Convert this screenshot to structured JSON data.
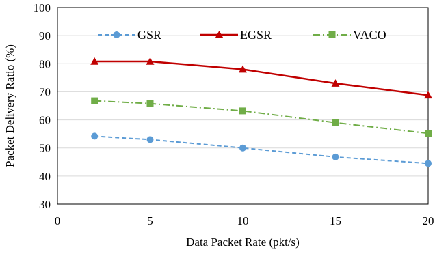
{
  "chart_data": {
    "type": "line",
    "xlabel": "Data Packet Rate (pkt/s)",
    "ylabel": "Packet Delivery Ratio (%)",
    "xlim": [
      0,
      20
    ],
    "ylim": [
      30,
      100
    ],
    "xticks": [
      0,
      5,
      10,
      15,
      20
    ],
    "yticks": [
      30,
      40,
      50,
      60,
      70,
      80,
      90,
      100
    ],
    "x": [
      2,
      5,
      10,
      15,
      20
    ],
    "grid": "horizontal major gridlines",
    "legend": "top, inside plot area, horizontal",
    "series": [
      {
        "name": "GSR",
        "values": [
          54.2,
          53.0,
          50.0,
          46.8,
          44.5
        ],
        "color": "#5b9bd5",
        "marker": "circle",
        "line": "dashed"
      },
      {
        "name": "EGSR",
        "values": [
          80.8,
          80.8,
          78.0,
          73.0,
          68.8
        ],
        "color": "#c00000",
        "marker": "triangle",
        "line": "solid"
      },
      {
        "name": "VACO",
        "values": [
          66.8,
          65.8,
          63.2,
          59.0,
          55.2
        ],
        "color": "#70ad47",
        "marker": "square",
        "line": "dash-dot"
      }
    ]
  }
}
